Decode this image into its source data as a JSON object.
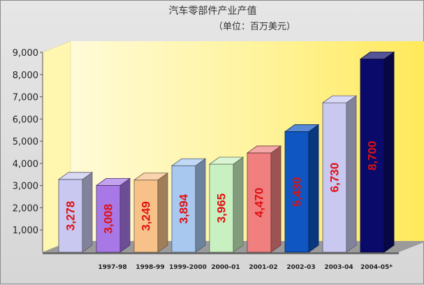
{
  "chart_data": {
    "type": "bar",
    "title": "汽车零部件产业产值",
    "subtitle": "（单位：百万美元）",
    "categories": [
      "",
      "1997-98",
      "1998-99",
      "1999-2000",
      "2000-01",
      "2001-02",
      "2002-03",
      "2003-04",
      "2004-05*"
    ],
    "values": [
      3278,
      3008,
      3249,
      3894,
      3965,
      4470,
      5430,
      6730,
      8700
    ],
    "data_labels": [
      "3,278",
      "3,008",
      "3,249",
      "3,894",
      "3,965",
      "4,470",
      "5,430",
      "6,730",
      "8,700"
    ],
    "y_ticks": [
      "1,000",
      "2,000",
      "3,000",
      "4,000",
      "5,000",
      "6,000",
      "7,000",
      "8,000",
      "9,000"
    ],
    "ylim": [
      0,
      9000
    ],
    "grid": false,
    "legend": "none",
    "colors": [
      "#c8c8f0",
      "#a878e6",
      "#f7c28a",
      "#a8c8f0",
      "#c8f0c0",
      "#f08080",
      "#0f56c2",
      "#c8c8f0",
      "#0a0a6a"
    ],
    "label_color": "#e01010"
  }
}
